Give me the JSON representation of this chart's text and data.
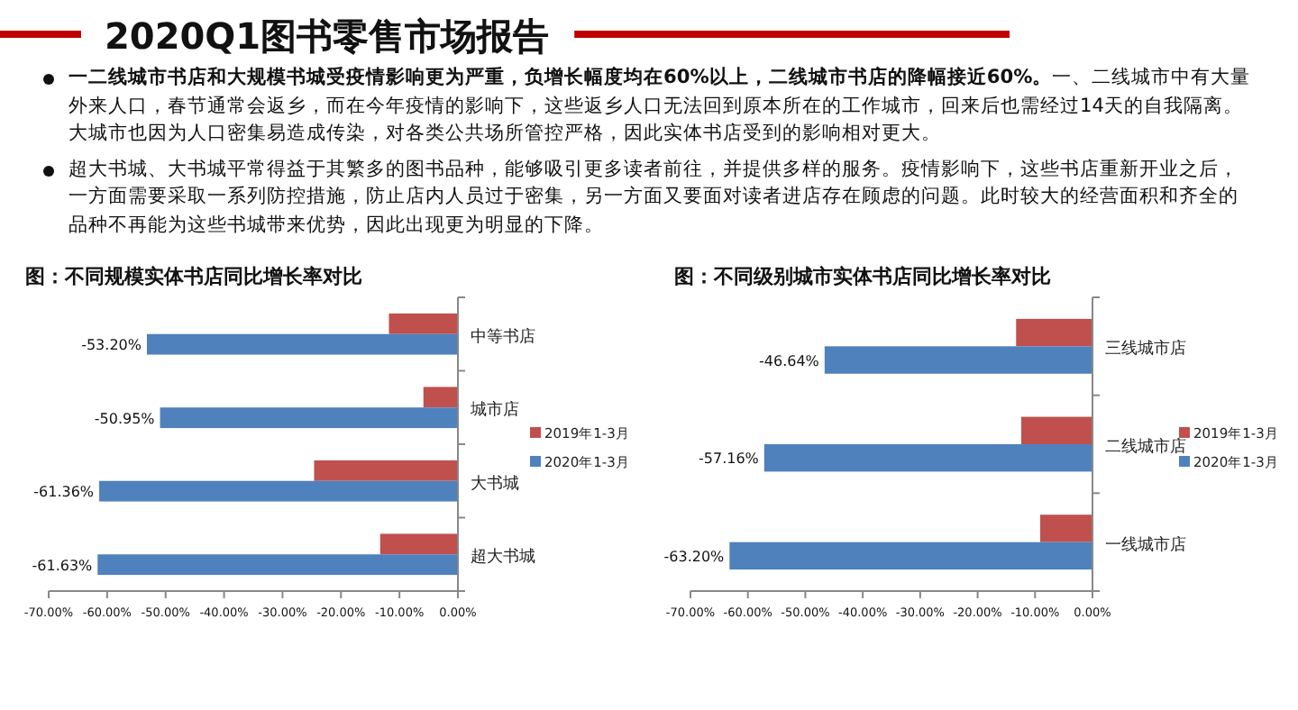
{
  "chart_data": [
    {
      "type": "other",
      "title": "2020Q1图书零售市场报告",
      "annotations": [
        "一二线城市书店和大规模书城受疫情影响更为严重，负增长幅度均在60%以上，二线城市书店的降幅接近60%。",
        "一、二线城市中有大量外来人口，春节通常会返乡，而在今年疫情的影响下，这些返乡人口无法回到原本所在的工作城市，回来后也需经过14天的自我隔离。大城市也因为人口密集易造成传染，对各类公共场所管控严格，因此实体书店受到的影响相对更大。",
        "超大书城、大书城平常得益于其繁多的图书品种，能够吸引更多读者前往，并提供多样的服务。疫情影响下，这些书店重新开业之后，一方面需要采取一系列防控措施，防止店内人员过于密集，另一方面又要面对读者进店存在顾虑的问题。此时较大的经营面积和齐全的品种不再能为这些书城带来优势，因此出现更为明显的下降。"
      ]
    },
    {
      "type": "bar",
      "orientation": "horizontal",
      "title": "图：不同规模实体书店同比增长率对比",
      "categories": [
        "中等书店",
        "城市店",
        "大书城",
        "超大书城"
      ],
      "xlim": [
        -70,
        0
      ],
      "xticks": [
        {
          "value": -70,
          "label": "-70.00%"
        },
        {
          "value": -60,
          "label": "-60.00%"
        },
        {
          "value": -50,
          "label": "-50.00%"
        },
        {
          "value": -40,
          "label": "-40.00%"
        },
        {
          "value": -30,
          "label": "-30.00%"
        },
        {
          "value": -20,
          "label": "-20.00%"
        },
        {
          "value": -10,
          "label": "-10.00%"
        },
        {
          "value": 0,
          "label": "0.00%"
        }
      ],
      "legend": "right",
      "grid": false,
      "series": [
        {
          "name": "2019年1-3月",
          "color": "#c0504d",
          "values": [
            -11.8,
            -5.9,
            -24.6,
            -13.3
          ]
        },
        {
          "name": "2020年1-3月",
          "color": "#4f81bd",
          "values": [
            -53.2,
            -50.95,
            -61.36,
            -61.63
          ],
          "value_labels": [
            "-53.20%",
            "-50.95%",
            "-61.36%",
            "-61.63%"
          ]
        }
      ]
    },
    {
      "type": "bar",
      "orientation": "horizontal",
      "title": "图：不同级别城市实体书店同比增长率对比",
      "categories": [
        "三线城市店",
        "二线城市店",
        "一线城市店"
      ],
      "xlim": [
        -70,
        0
      ],
      "xticks": [
        {
          "value": -70,
          "label": "-70.00%"
        },
        {
          "value": -60,
          "label": "-60.00%"
        },
        {
          "value": -50,
          "label": "-50.00%"
        },
        {
          "value": -40,
          "label": "-40.00%"
        },
        {
          "value": -30,
          "label": "-30.00%"
        },
        {
          "value": -20,
          "label": "-20.00%"
        },
        {
          "value": -10,
          "label": "-10.00%"
        },
        {
          "value": 0,
          "label": "0.00%"
        }
      ],
      "legend": "right",
      "grid": false,
      "series": [
        {
          "name": "2019年1-3月",
          "color": "#c0504d",
          "values": [
            -13.3,
            -12.4,
            -9.1
          ]
        },
        {
          "name": "2020年1-3月",
          "color": "#4f81bd",
          "values": [
            -46.64,
            -57.16,
            -63.2
          ],
          "value_labels": [
            "-46.64%",
            "-57.16%",
            "-63.20%"
          ]
        }
      ]
    }
  ]
}
